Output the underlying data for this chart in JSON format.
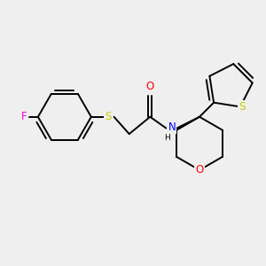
{
  "background_color": "#efefef",
  "bond_color": "#000000",
  "atom_colors": {
    "F": "#ff00dd",
    "S": "#cccc00",
    "O": "#ff0000",
    "N": "#0000ff",
    "H": "#000000",
    "C": "#000000"
  },
  "figsize": [
    3.0,
    3.0
  ],
  "dpi": 100,
  "bond_lw": 1.4,
  "font_size": 8.5
}
